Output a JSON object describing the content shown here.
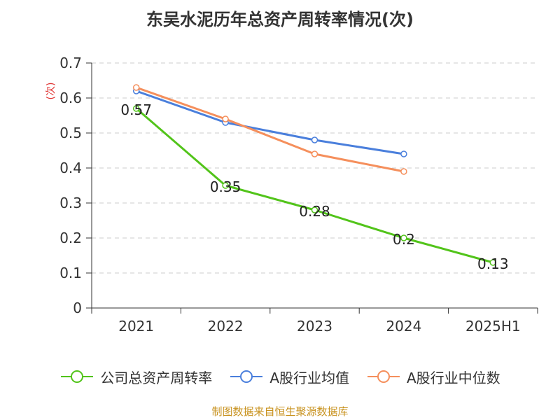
{
  "title": "东吴水泥历年总资产周转率情况(次)",
  "source": "制图数据来自恒生聚源数据库",
  "chart_data": {
    "type": "line",
    "title": "东吴水泥历年总资产周转率情况(次)",
    "ylabel": "(次)",
    "xlabel": "",
    "categories": [
      "2021",
      "2022",
      "2023",
      "2024",
      "2025H1"
    ],
    "ylim": [
      0,
      0.7
    ],
    "yticks": [
      0,
      0.1,
      0.2,
      0.3,
      0.4,
      0.5,
      0.6,
      0.7
    ],
    "grid": true,
    "legend_position": "bottom",
    "series": [
      {
        "name": "公司总资产周转率",
        "color": "#52c41a",
        "values": [
          0.57,
          0.35,
          0.28,
          0.2,
          0.13
        ],
        "labels": [
          "0.57",
          "0.35",
          "0.28",
          "0.2",
          "0.13"
        ]
      },
      {
        "name": "A股行业均值",
        "color": "#4a7fdc",
        "values": [
          0.62,
          0.53,
          0.48,
          0.44,
          null
        ]
      },
      {
        "name": "A股行业中位数",
        "color": "#f58f5c",
        "values": [
          0.63,
          0.54,
          0.44,
          0.39,
          null
        ]
      }
    ]
  }
}
